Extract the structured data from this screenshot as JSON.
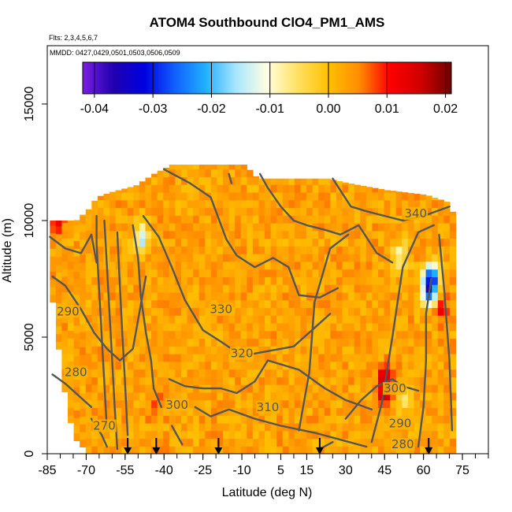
{
  "chart_data": {
    "type": "heatmap",
    "title": "ATOM4 Southbound ClO4_PM1_AMS",
    "flights_note": "Flts: 2,3,4,5,6,7",
    "mmdd_note": "MMDD: 0427,0429,0501,0503,0506,0509",
    "xlabel": "Latitude (deg N)",
    "ylabel": "Altitude (m)",
    "xlim": [
      -85,
      85
    ],
    "ylim": [
      0,
      17500
    ],
    "x_ticks": [
      -85,
      -70,
      -55,
      -40,
      -25,
      -10,
      5,
      15,
      30,
      45,
      60,
      75
    ],
    "y_ticks": [
      0,
      5000,
      10000,
      15000
    ],
    "colorbar": {
      "range": [
        -0.042,
        0.021
      ],
      "ticks": [
        -0.04,
        -0.03,
        -0.02,
        -0.01,
        0.0,
        0.01,
        0.02
      ],
      "tick_labels": [
        "-0.04",
        "-0.03",
        "-0.02",
        "-0.01",
        "0.00",
        "0.01",
        "0.02"
      ],
      "colors": [
        "#7a1fe0",
        "#2000b0",
        "#0000e0",
        "#1060ff",
        "#20b0ff",
        "#aae6ff",
        "#ffffe0",
        "#ffe060",
        "#ffc000",
        "#ff8c00",
        "#ff0000",
        "#d00000",
        "#700000"
      ]
    },
    "contour_labels": [
      {
        "text": "340",
        "lat": 57,
        "alt": 10300
      },
      {
        "text": "330",
        "lat": -18,
        "alt": 6200
      },
      {
        "text": "320",
        "lat": -10,
        "alt": 4300
      },
      {
        "text": "310",
        "lat": 0,
        "alt": 2000
      },
      {
        "text": "300",
        "lat": -35,
        "alt": 2100
      },
      {
        "text": "300",
        "lat": 49,
        "alt": 2800
      },
      {
        "text": "290",
        "lat": -77,
        "alt": 6100
      },
      {
        "text": "290",
        "lat": 51,
        "alt": 1300
      },
      {
        "text": "280",
        "lat": -74,
        "alt": 3500
      },
      {
        "text": "280",
        "lat": 52,
        "alt": 400
      },
      {
        "text": "270",
        "lat": -63,
        "alt": 1200
      }
    ],
    "profile_arrows_lat": [
      -54,
      -43,
      -19,
      20,
      62
    ],
    "background_value": 0.003,
    "features": [
      {
        "lat": -45,
        "alt": 2000,
        "value": 0.008
      },
      {
        "lat": 44,
        "alt": 3000,
        "value": 0.014
      },
      {
        "lat": 44,
        "alt": 2400,
        "value": 0.011
      },
      {
        "lat": 62,
        "alt": 7500,
        "value": -0.022
      },
      {
        "lat": 61,
        "alt": 6800,
        "value": -0.028
      },
      {
        "lat": 50,
        "alt": 8300,
        "value": -0.009
      },
      {
        "lat": 52,
        "alt": 2200,
        "value": -0.008
      },
      {
        "lat": -50,
        "alt": 9100,
        "value": -0.015
      },
      {
        "lat": -82,
        "alt": 9900,
        "value": 0.01
      },
      {
        "lat": 66,
        "alt": 6000,
        "value": 0.01
      }
    ]
  }
}
